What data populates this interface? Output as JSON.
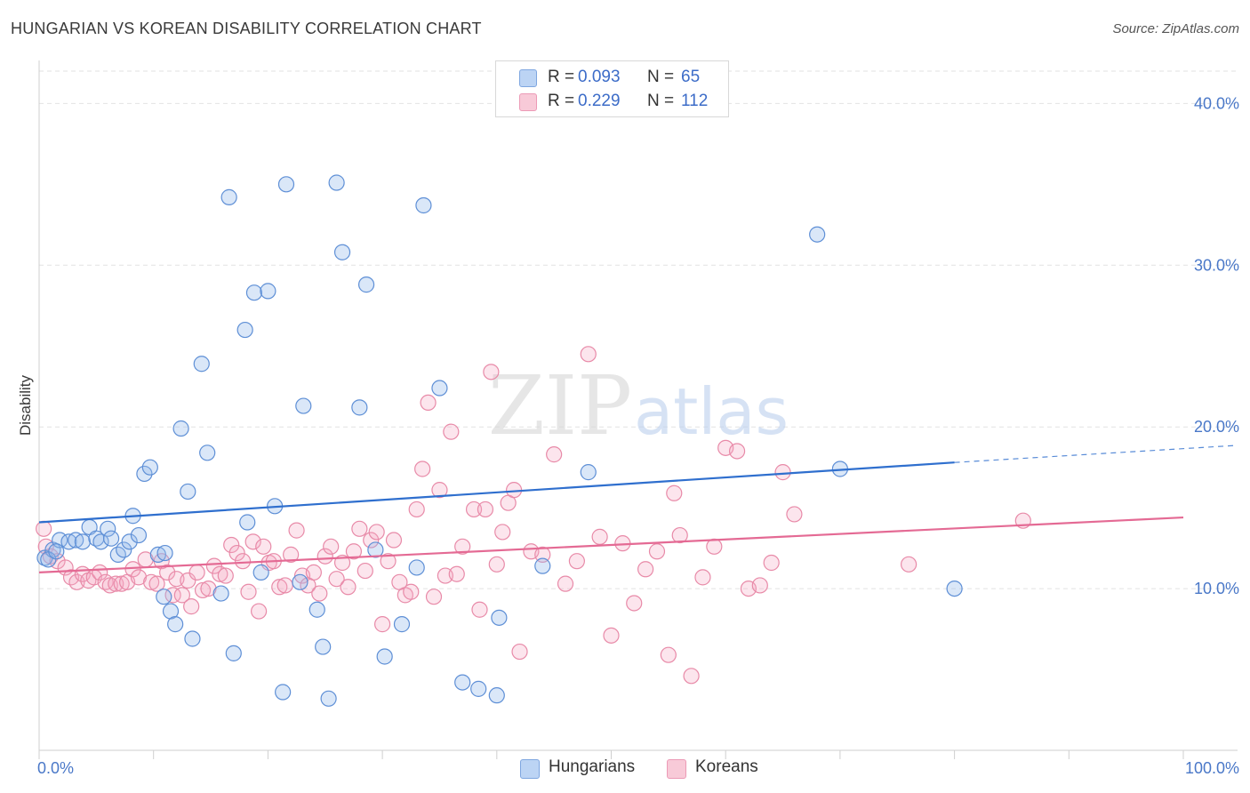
{
  "title": "HUNGARIAN VS KOREAN DISABILITY CORRELATION CHART",
  "source": "Source: ZipAtlas.com",
  "watermark": {
    "zip": "ZIP",
    "atlas": "atlas"
  },
  "legend": {
    "rows": [
      {
        "r_label": "R =",
        "r_value": "0.093",
        "n_label": "N =",
        "n_value": "65",
        "color": "#a9c6ef"
      },
      {
        "r_label": "R =",
        "r_value": "0.229",
        "n_label": "N =",
        "n_value": "112",
        "color": "#f5b7cb"
      }
    ]
  },
  "bottom_legend": {
    "items": [
      "Hungarians",
      "Koreans"
    ]
  },
  "colors": {
    "hungarian_fill": "rgba(150,185,235,0.35)",
    "hungarian_stroke": "#5e8fd6",
    "hungarian_line": "#2f6fce",
    "korean_fill": "rgba(245,170,195,0.30)",
    "korean_stroke": "#e88aa8",
    "korean_line": "#e46a94",
    "tick_text": "#4a78c8"
  },
  "chart_data": {
    "type": "scatter",
    "title": "HUNGARIAN VS KOREAN DISABILITY CORRELATION CHART",
    "xlabel": "",
    "ylabel": "Disability",
    "xlim": [
      0,
      100
    ],
    "ylim": [
      0,
      42
    ],
    "x_tick_labels": [
      "0.0%",
      "100.0%"
    ],
    "y_tick_labels": [
      "10.0%",
      "20.0%",
      "30.0%",
      "40.0%"
    ],
    "y_ticks": [
      10,
      20,
      30,
      40
    ],
    "grid": true,
    "legend_position": "top-center",
    "series": [
      {
        "name": "Hungarians",
        "r": 0.093,
        "n": 65,
        "trend": {
          "x": [
            0,
            80
          ],
          "y": [
            14.1,
            17.8
          ],
          "dashed_extension_to": [
            100,
            18.8
          ]
        },
        "points": [
          [
            0.5,
            11.9
          ],
          [
            1.2,
            12.4
          ],
          [
            1.8,
            13.0
          ],
          [
            2.6,
            12.9
          ],
          [
            3.2,
            13.0
          ],
          [
            3.8,
            12.9
          ],
          [
            4.4,
            13.8
          ],
          [
            5.0,
            13.1
          ],
          [
            5.4,
            12.9
          ],
          [
            6.0,
            13.7
          ],
          [
            6.3,
            13.1
          ],
          [
            6.9,
            12.1
          ],
          [
            7.4,
            12.4
          ],
          [
            7.9,
            12.9
          ],
          [
            8.2,
            14.5
          ],
          [
            8.7,
            13.3
          ],
          [
            9.2,
            17.1
          ],
          [
            9.7,
            17.5
          ],
          [
            10.4,
            12.1
          ],
          [
            10.9,
            9.5
          ],
          [
            11.0,
            12.2
          ],
          [
            11.5,
            8.6
          ],
          [
            11.9,
            7.8
          ],
          [
            12.4,
            19.9
          ],
          [
            13.0,
            16.0
          ],
          [
            13.4,
            6.9
          ],
          [
            14.2,
            23.9
          ],
          [
            14.7,
            18.4
          ],
          [
            15.9,
            9.7
          ],
          [
            16.6,
            34.2
          ],
          [
            17.0,
            6.0
          ],
          [
            18.0,
            26.0
          ],
          [
            18.2,
            14.1
          ],
          [
            18.8,
            28.3
          ],
          [
            19.4,
            11.0
          ],
          [
            20.0,
            28.4
          ],
          [
            20.6,
            15.1
          ],
          [
            21.3,
            3.6
          ],
          [
            21.6,
            35.0
          ],
          [
            22.8,
            10.4
          ],
          [
            23.1,
            21.3
          ],
          [
            24.3,
            8.7
          ],
          [
            24.8,
            6.4
          ],
          [
            25.3,
            3.2
          ],
          [
            26.0,
            35.1
          ],
          [
            26.5,
            30.8
          ],
          [
            28.0,
            21.2
          ],
          [
            28.6,
            28.8
          ],
          [
            29.4,
            12.4
          ],
          [
            30.2,
            5.8
          ],
          [
            31.7,
            7.8
          ],
          [
            33.0,
            11.3
          ],
          [
            33.6,
            33.7
          ],
          [
            35.0,
            22.4
          ],
          [
            37.0,
            4.2
          ],
          [
            38.4,
            3.8
          ],
          [
            40.0,
            3.4
          ],
          [
            40.2,
            8.2
          ],
          [
            44.0,
            11.4
          ],
          [
            48.0,
            17.2
          ],
          [
            68.0,
            31.9
          ],
          [
            70.0,
            17.4
          ],
          [
            80.0,
            10.0
          ],
          [
            0.8,
            11.8
          ],
          [
            1.5,
            12.3
          ]
        ]
      },
      {
        "name": "Koreans",
        "r": 0.229,
        "n": 112,
        "trend": {
          "x": [
            0,
            100
          ],
          "y": [
            11.0,
            14.4
          ]
        },
        "points": [
          [
            0.4,
            13.7
          ],
          [
            0.6,
            12.6
          ],
          [
            1.0,
            12.0
          ],
          [
            1.6,
            11.7
          ],
          [
            2.3,
            11.3
          ],
          [
            2.8,
            10.7
          ],
          [
            3.3,
            10.4
          ],
          [
            3.8,
            10.9
          ],
          [
            4.3,
            10.5
          ],
          [
            4.8,
            10.7
          ],
          [
            5.3,
            11.0
          ],
          [
            5.8,
            10.4
          ],
          [
            6.2,
            10.2
          ],
          [
            6.7,
            10.3
          ],
          [
            7.2,
            10.3
          ],
          [
            7.7,
            10.4
          ],
          [
            8.2,
            11.2
          ],
          [
            8.7,
            10.7
          ],
          [
            9.3,
            11.8
          ],
          [
            9.8,
            10.4
          ],
          [
            10.3,
            10.3
          ],
          [
            10.7,
            11.7
          ],
          [
            11.2,
            11.0
          ],
          [
            11.7,
            9.6
          ],
          [
            12.0,
            10.6
          ],
          [
            12.5,
            9.6
          ],
          [
            13.0,
            10.5
          ],
          [
            13.3,
            8.9
          ],
          [
            13.8,
            11.0
          ],
          [
            14.3,
            9.9
          ],
          [
            14.8,
            10.0
          ],
          [
            15.3,
            11.4
          ],
          [
            15.8,
            10.9
          ],
          [
            16.3,
            10.8
          ],
          [
            16.8,
            12.7
          ],
          [
            17.3,
            12.2
          ],
          [
            17.8,
            11.7
          ],
          [
            18.3,
            9.8
          ],
          [
            18.7,
            12.9
          ],
          [
            19.2,
            8.6
          ],
          [
            19.6,
            12.6
          ],
          [
            20.1,
            11.6
          ],
          [
            20.5,
            11.7
          ],
          [
            21.0,
            10.1
          ],
          [
            21.5,
            10.2
          ],
          [
            22.0,
            12.1
          ],
          [
            22.5,
            13.6
          ],
          [
            23.0,
            10.8
          ],
          [
            23.5,
            10.2
          ],
          [
            24.0,
            11.0
          ],
          [
            24.5,
            9.7
          ],
          [
            25.0,
            12.0
          ],
          [
            25.5,
            12.6
          ],
          [
            26.0,
            10.6
          ],
          [
            26.5,
            11.6
          ],
          [
            27.0,
            10.1
          ],
          [
            27.5,
            12.3
          ],
          [
            28.0,
            13.7
          ],
          [
            28.5,
            11.1
          ],
          [
            29.0,
            13.0
          ],
          [
            29.5,
            13.5
          ],
          [
            30.0,
            7.8
          ],
          [
            30.5,
            11.7
          ],
          [
            31.0,
            13.0
          ],
          [
            31.5,
            10.4
          ],
          [
            32.0,
            9.6
          ],
          [
            32.5,
            9.8
          ],
          [
            33.0,
            14.9
          ],
          [
            33.5,
            17.4
          ],
          [
            34.0,
            21.5
          ],
          [
            34.5,
            9.5
          ],
          [
            35.0,
            16.1
          ],
          [
            35.5,
            10.8
          ],
          [
            36.0,
            19.7
          ],
          [
            36.5,
            10.9
          ],
          [
            37.0,
            12.6
          ],
          [
            38.0,
            14.9
          ],
          [
            38.5,
            8.7
          ],
          [
            39.0,
            14.9
          ],
          [
            39.5,
            23.4
          ],
          [
            40.0,
            11.5
          ],
          [
            40.5,
            13.5
          ],
          [
            41.0,
            15.3
          ],
          [
            41.5,
            16.1
          ],
          [
            42.0,
            6.1
          ],
          [
            43.0,
            12.3
          ],
          [
            44.0,
            12.1
          ],
          [
            45.0,
            18.3
          ],
          [
            46.0,
            10.3
          ],
          [
            47.0,
            11.7
          ],
          [
            48.0,
            24.5
          ],
          [
            49.0,
            13.2
          ],
          [
            50.0,
            7.1
          ],
          [
            51.0,
            12.8
          ],
          [
            52.0,
            9.1
          ],
          [
            53.0,
            11.2
          ],
          [
            54.0,
            12.3
          ],
          [
            55.0,
            5.9
          ],
          [
            55.5,
            15.9
          ],
          [
            56.0,
            13.3
          ],
          [
            57.0,
            4.6
          ],
          [
            58.0,
            10.7
          ],
          [
            59.0,
            12.6
          ],
          [
            60.0,
            18.7
          ],
          [
            61.0,
            18.5
          ],
          [
            62.0,
            10.0
          ],
          [
            63.0,
            10.2
          ],
          [
            64.0,
            11.6
          ],
          [
            65.0,
            17.2
          ],
          [
            66.0,
            14.6
          ],
          [
            76.0,
            11.5
          ],
          [
            86.0,
            14.2
          ]
        ]
      }
    ]
  }
}
